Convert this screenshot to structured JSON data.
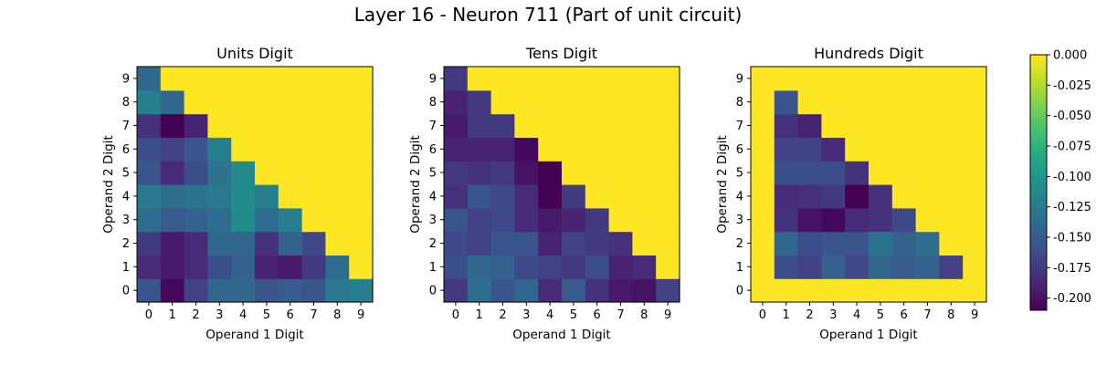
{
  "figure": {
    "title": "Layer 16 - Neuron 711 (Part of unit circuit)"
  },
  "colorbar": {
    "ticks": [
      "0.000",
      "-0.025",
      "-0.050",
      "-0.075",
      "-0.100",
      "-0.125",
      "-0.150",
      "-0.175",
      "-0.200"
    ],
    "min": -0.21,
    "max": 0.0,
    "colormap": "viridis"
  },
  "chart_data": [
    {
      "type": "heatmap",
      "title": "Units Digit",
      "xlabel": "Operand 1 Digit",
      "ylabel": "Operand 2 Digit",
      "x": [
        0,
        1,
        2,
        3,
        4,
        5,
        6,
        7,
        8,
        9
      ],
      "y": [
        0,
        1,
        2,
        3,
        4,
        5,
        6,
        7,
        8,
        9
      ],
      "vmin": -0.21,
      "vmax": 0.0,
      "values_by_y": [
        [
          -0.155,
          -0.205,
          -0.17,
          -0.14,
          -0.14,
          -0.155,
          -0.15,
          -0.155,
          -0.125,
          -0.12
        ],
        [
          -0.185,
          -0.195,
          -0.185,
          -0.16,
          -0.145,
          -0.19,
          -0.195,
          -0.175,
          -0.135,
          0.0
        ],
        [
          -0.175,
          -0.195,
          -0.185,
          -0.14,
          -0.14,
          -0.18,
          -0.145,
          -0.165,
          0.0,
          0.0
        ],
        [
          -0.135,
          -0.15,
          -0.145,
          -0.135,
          -0.11,
          -0.135,
          -0.12,
          0.0,
          0.0,
          0.0
        ],
        [
          -0.125,
          -0.135,
          -0.13,
          -0.125,
          -0.11,
          -0.12,
          0.0,
          0.0,
          0.0,
          0.0
        ],
        [
          -0.155,
          -0.185,
          -0.16,
          -0.13,
          -0.11,
          0.0,
          0.0,
          0.0,
          0.0,
          0.0
        ],
        [
          -0.16,
          -0.17,
          -0.155,
          -0.12,
          0.0,
          0.0,
          0.0,
          0.0,
          0.0,
          0.0
        ],
        [
          -0.18,
          -0.21,
          -0.19,
          0.0,
          0.0,
          0.0,
          0.0,
          0.0,
          0.0,
          0.0
        ],
        [
          -0.12,
          -0.14,
          0.0,
          0.0,
          0.0,
          0.0,
          0.0,
          0.0,
          0.0,
          0.0
        ],
        [
          -0.14,
          0.0,
          0.0,
          0.0,
          0.0,
          0.0,
          0.0,
          0.0,
          0.0,
          0.0
        ]
      ]
    },
    {
      "type": "heatmap",
      "title": "Tens Digit",
      "xlabel": "Operand 1 Digit",
      "ylabel": "Operand 2 Digit",
      "x": [
        0,
        1,
        2,
        3,
        4,
        5,
        6,
        7,
        8,
        9
      ],
      "y": [
        0,
        1,
        2,
        3,
        4,
        5,
        6,
        7,
        8,
        9
      ],
      "vmin": -0.21,
      "vmax": 0.0,
      "values_by_y": [
        [
          -0.175,
          -0.135,
          -0.155,
          -0.14,
          -0.185,
          -0.15,
          -0.18,
          -0.195,
          -0.2,
          -0.17
        ],
        [
          -0.16,
          -0.14,
          -0.145,
          -0.165,
          -0.17,
          -0.175,
          -0.16,
          -0.19,
          -0.185,
          0.0
        ],
        [
          -0.165,
          -0.17,
          -0.155,
          -0.155,
          -0.19,
          -0.17,
          -0.175,
          -0.18,
          0.0,
          0.0
        ],
        [
          -0.155,
          -0.17,
          -0.165,
          -0.185,
          -0.195,
          -0.19,
          -0.175,
          0.0,
          0.0,
          0.0
        ],
        [
          -0.18,
          -0.155,
          -0.165,
          -0.185,
          -0.21,
          -0.175,
          0.0,
          0.0,
          0.0,
          0.0
        ],
        [
          -0.175,
          -0.18,
          -0.175,
          -0.2,
          -0.21,
          0.0,
          0.0,
          0.0,
          0.0,
          0.0
        ],
        [
          -0.19,
          -0.19,
          -0.19,
          -0.205,
          0.0,
          0.0,
          0.0,
          0.0,
          0.0,
          0.0
        ],
        [
          -0.195,
          -0.175,
          -0.175,
          0.0,
          0.0,
          0.0,
          0.0,
          0.0,
          0.0,
          0.0
        ],
        [
          -0.19,
          -0.175,
          0.0,
          0.0,
          0.0,
          0.0,
          0.0,
          0.0,
          0.0,
          0.0
        ],
        [
          -0.175,
          0.0,
          0.0,
          0.0,
          0.0,
          0.0,
          0.0,
          0.0,
          0.0,
          0.0
        ]
      ]
    },
    {
      "type": "heatmap",
      "title": "Hundreds Digit",
      "xlabel": "Operand 1 Digit",
      "ylabel": "Operand 2 Digit",
      "x": [
        0,
        1,
        2,
        3,
        4,
        5,
        6,
        7,
        8,
        9
      ],
      "y": [
        0,
        1,
        2,
        3,
        4,
        5,
        6,
        7,
        8,
        9
      ],
      "vmin": -0.21,
      "vmax": 0.0,
      "values_by_y": [
        [
          0.0,
          0.0,
          0.0,
          0.0,
          0.0,
          0.0,
          0.0,
          0.0,
          0.0,
          0.0
        ],
        [
          0.0,
          -0.16,
          -0.17,
          -0.145,
          -0.165,
          -0.14,
          -0.15,
          -0.145,
          -0.17,
          0.0
        ],
        [
          0.0,
          -0.14,
          -0.16,
          -0.155,
          -0.155,
          -0.13,
          -0.145,
          -0.135,
          0.0,
          0.0
        ],
        [
          0.0,
          -0.18,
          -0.2,
          -0.205,
          -0.185,
          -0.18,
          -0.165,
          0.0,
          0.0,
          0.0
        ],
        [
          0.0,
          -0.185,
          -0.18,
          -0.175,
          -0.21,
          -0.18,
          0.0,
          0.0,
          0.0,
          0.0
        ],
        [
          0.0,
          -0.16,
          -0.16,
          -0.16,
          -0.18,
          0.0,
          0.0,
          0.0,
          0.0,
          0.0
        ],
        [
          0.0,
          -0.17,
          -0.17,
          -0.185,
          0.0,
          0.0,
          0.0,
          0.0,
          0.0,
          0.0
        ],
        [
          0.0,
          -0.18,
          -0.19,
          0.0,
          0.0,
          0.0,
          0.0,
          0.0,
          0.0,
          0.0
        ],
        [
          0.0,
          -0.155,
          0.0,
          0.0,
          0.0,
          0.0,
          0.0,
          0.0,
          0.0,
          0.0
        ],
        [
          0.0,
          0.0,
          0.0,
          0.0,
          0.0,
          0.0,
          0.0,
          0.0,
          0.0,
          0.0
        ]
      ]
    }
  ]
}
